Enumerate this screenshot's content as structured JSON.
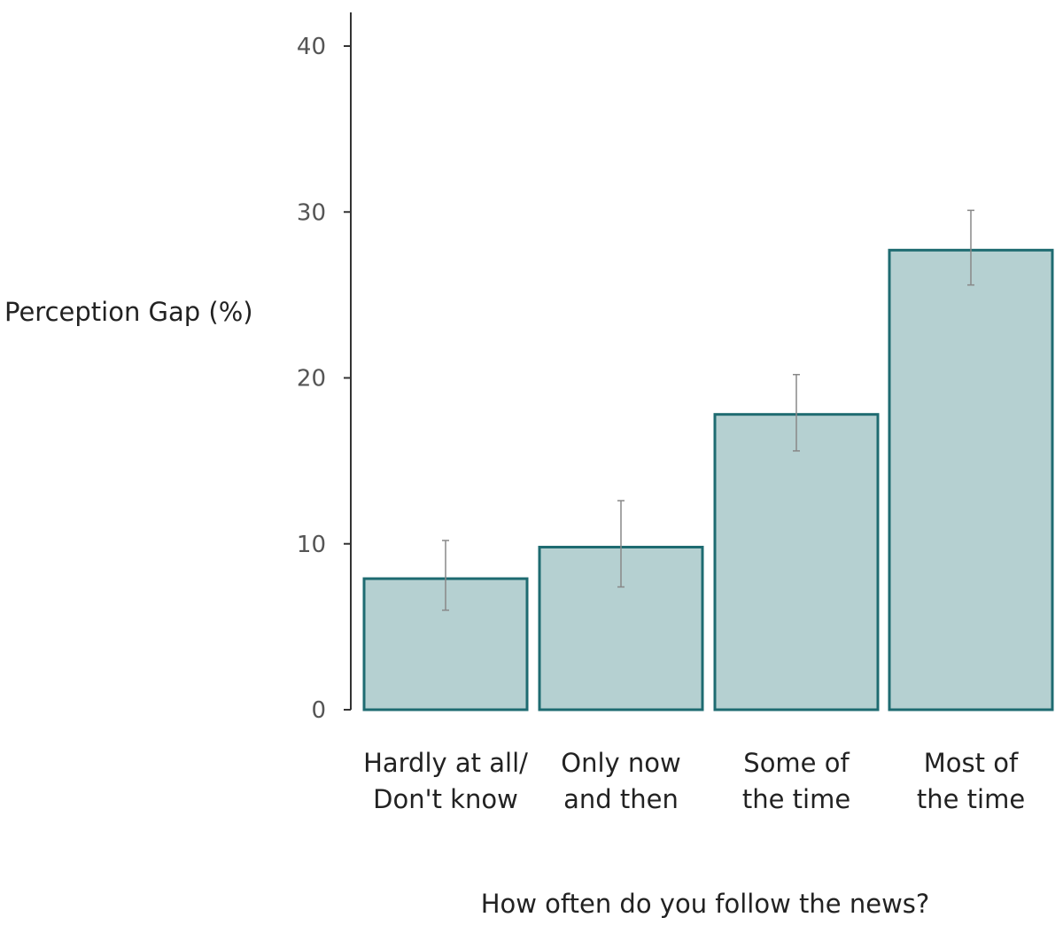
{
  "chart_data": {
    "type": "bar",
    "title": "",
    "ylabel": "Perception Gap (%)",
    "xlabel": "How often do you follow the news?",
    "ylim": [
      0,
      42
    ],
    "yticks": [
      0,
      10,
      20,
      30,
      40
    ],
    "grid": false,
    "categories": [
      [
        "Hardly at all/",
        "Don't know"
      ],
      [
        "Only now",
        "and then"
      ],
      [
        "Some of",
        "the time"
      ],
      [
        "Most of",
        "the time"
      ]
    ],
    "values": [
      7.9,
      9.8,
      17.8,
      27.7
    ],
    "error_low": [
      6.0,
      7.4,
      15.6,
      25.6
    ],
    "error_high": [
      10.2,
      12.6,
      20.2,
      30.1
    ],
    "colors": {
      "bar_fill": "#b5d0d1",
      "bar_stroke": "#1e6b71",
      "axis": "#333333",
      "errorbar": "#888888"
    }
  }
}
